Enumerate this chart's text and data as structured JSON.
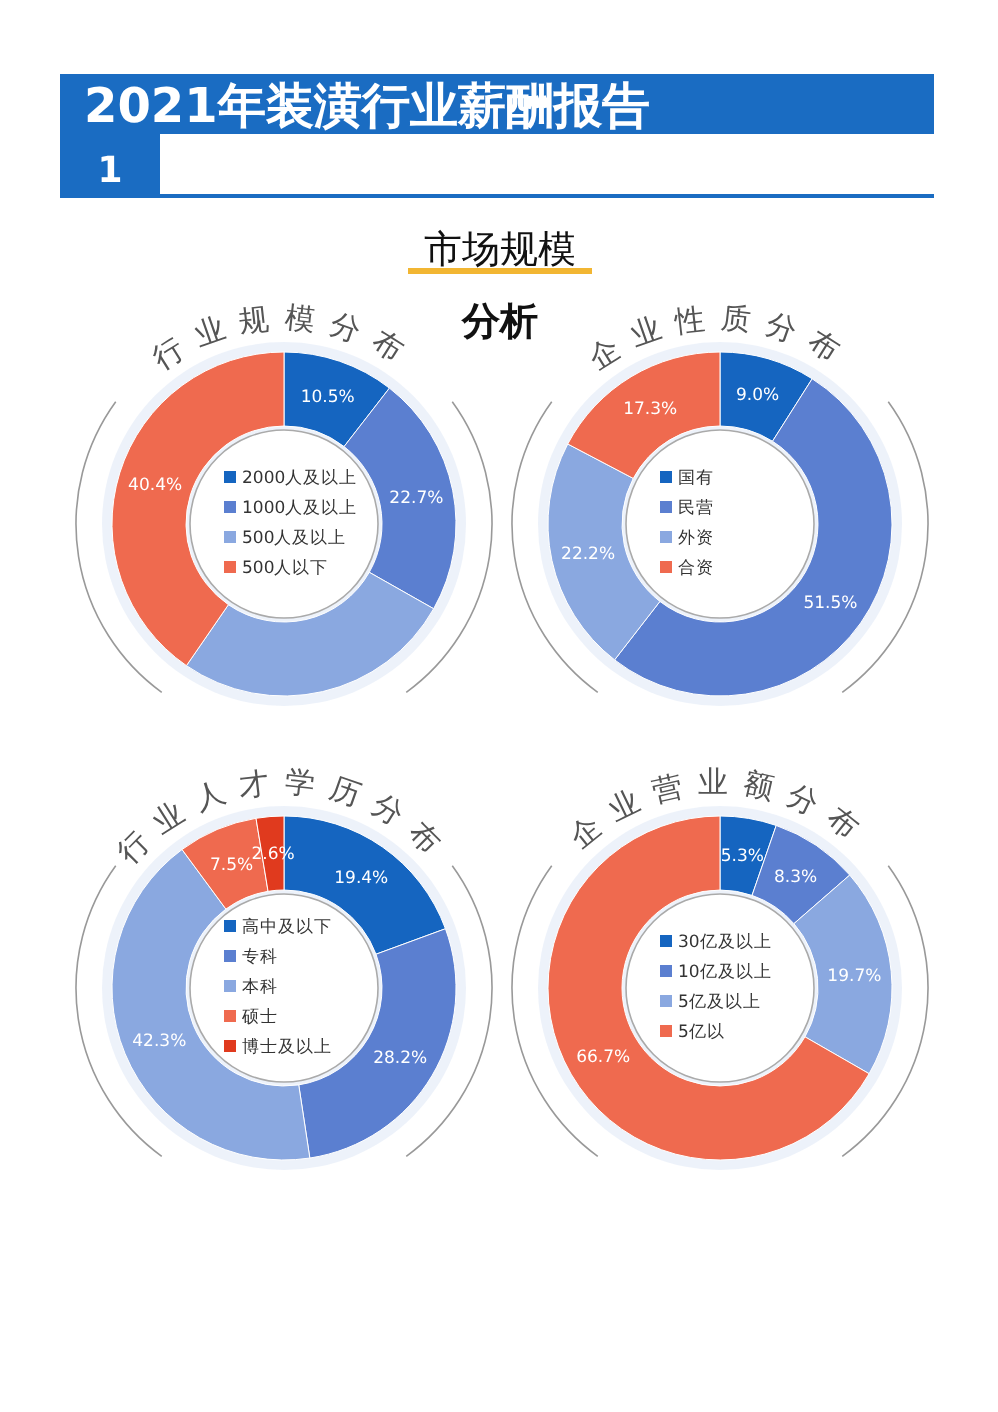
{
  "chart_data": [
    {
      "type": "other",
      "title": "2021年装潢行业薪酬报告",
      "annotations": [
        "1",
        "市场规模",
        "分析"
      ]
    },
    {
      "type": "donut",
      "title": "行业规模分布",
      "categories": [
        "2000人及以上",
        "1000人及以上",
        "500人及以上",
        "500人以下"
      ],
      "values": [
        10.5,
        22.7,
        26.4,
        40.4
      ],
      "colors": [
        "#1565c0",
        "#5b7fd0",
        "#8aa8e0",
        "#ef6a4f"
      ],
      "value_labels": [
        "10.5%",
        "22.7%",
        null,
        "40.4%"
      ],
      "legend": "center"
    },
    {
      "type": "donut",
      "title": "企业性质分布",
      "categories": [
        "国有",
        "民营",
        "外资",
        "合资"
      ],
      "values": [
        9.0,
        51.5,
        22.2,
        17.3
      ],
      "colors": [
        "#1565c0",
        "#5b7fd0",
        "#8aa8e0",
        "#ef6a4f"
      ],
      "value_labels": [
        "9.0%",
        "51.5%",
        "22.2%",
        "17.3%"
      ],
      "legend": "center"
    },
    {
      "type": "donut",
      "title": "行业人才学历分布",
      "categories": [
        "高中及以下",
        "专科",
        "本科",
        "硕士",
        "博士及以上"
      ],
      "values": [
        19.4,
        28.2,
        42.3,
        7.5,
        2.6
      ],
      "colors": [
        "#1565c0",
        "#5b7fd0",
        "#8aa8e0",
        "#ef6a4f",
        "#e03a1e"
      ],
      "value_labels": [
        "19.4%",
        "28.2%",
        "42.3%",
        "7.5%",
        "2.6%"
      ],
      "legend": "center"
    },
    {
      "type": "donut",
      "title": "企业营业额分布",
      "categories": [
        "30亿及以上",
        "10亿及以上",
        "5亿及以上",
        "5亿以"
      ],
      "values": [
        5.3,
        8.3,
        19.7,
        66.7
      ],
      "colors": [
        "#1565c0",
        "#5b7fd0",
        "#8aa8e0",
        "#ef6a4f"
      ],
      "value_labels": [
        "5.3%",
        "8.3%",
        "19.7%",
        "66.7%"
      ],
      "legend": "center"
    }
  ]
}
